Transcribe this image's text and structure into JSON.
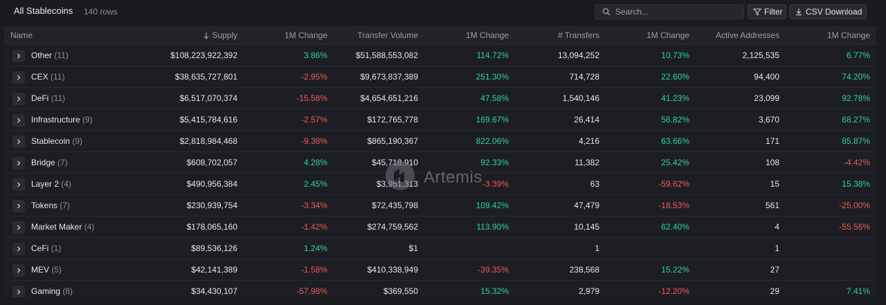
{
  "header": {
    "title": "All Stablecoins",
    "rows_label": "140 rows",
    "search_placeholder": "Search...",
    "filter_label": "Filter",
    "csv_label": "CSV Download"
  },
  "columns": {
    "name": "Name",
    "supply": "Supply",
    "supply_change": "1M Change",
    "transfer_volume": "Transfer Volume",
    "volume_change": "1M Change",
    "transfers": "# Transfers",
    "transfers_change": "1M Change",
    "active_addresses": "Active Addresses",
    "addresses_change": "1M Change"
  },
  "sort": {
    "column": "supply",
    "direction": "desc"
  },
  "rows": [
    {
      "name": "Other",
      "count": "(11)",
      "supply": "$108,223,922,392",
      "supply_change": "3.86%",
      "sc_dir": "pos",
      "volume": "$51,588,553,082",
      "volume_change": "114.72%",
      "vc_dir": "pos",
      "transfers": "13,094,252",
      "transfers_change": "10.73%",
      "tc_dir": "pos",
      "addresses": "2,125,535",
      "addresses_change": "6.77%",
      "ac_dir": "pos"
    },
    {
      "name": "CEX",
      "count": "(11)",
      "supply": "$38,635,727,801",
      "supply_change": "-2.95%",
      "sc_dir": "neg",
      "volume": "$9,673,837,389",
      "volume_change": "251.30%",
      "vc_dir": "pos",
      "transfers": "714,728",
      "transfers_change": "22.60%",
      "tc_dir": "pos",
      "addresses": "94,400",
      "addresses_change": "74.20%",
      "ac_dir": "pos"
    },
    {
      "name": "DeFi",
      "count": "(11)",
      "supply": "$6,517,070,374",
      "supply_change": "-15.58%",
      "sc_dir": "neg",
      "volume": "$4,654,651,216",
      "volume_change": "47.58%",
      "vc_dir": "pos",
      "transfers": "1,540,146",
      "transfers_change": "41.23%",
      "tc_dir": "pos",
      "addresses": "23,099",
      "addresses_change": "92.78%",
      "ac_dir": "pos"
    },
    {
      "name": "Infrastructure",
      "count": "(9)",
      "supply": "$5,415,784,616",
      "supply_change": "-2.57%",
      "sc_dir": "neg",
      "volume": "$172,765,778",
      "volume_change": "169.67%",
      "vc_dir": "pos",
      "transfers": "26,414",
      "transfers_change": "56.82%",
      "tc_dir": "pos",
      "addresses": "3,670",
      "addresses_change": "68.27%",
      "ac_dir": "pos"
    },
    {
      "name": "Stablecoin",
      "count": "(9)",
      "supply": "$2,818,984,468",
      "supply_change": "-9.38%",
      "sc_dir": "neg",
      "volume": "$865,190,367",
      "volume_change": "822.06%",
      "vc_dir": "pos",
      "transfers": "4,216",
      "transfers_change": "63.66%",
      "tc_dir": "pos",
      "addresses": "171",
      "addresses_change": "85.87%",
      "ac_dir": "pos"
    },
    {
      "name": "Bridge",
      "count": "(7)",
      "supply": "$608,702,057",
      "supply_change": "4.28%",
      "sc_dir": "pos",
      "volume": "$45,718,910",
      "volume_change": "92.33%",
      "vc_dir": "pos",
      "transfers": "11,382",
      "transfers_change": "25.42%",
      "tc_dir": "pos",
      "addresses": "108",
      "addresses_change": "-4.42%",
      "ac_dir": "neg"
    },
    {
      "name": "Layer 2",
      "count": "(4)",
      "supply": "$490,956,384",
      "supply_change": "2.45%",
      "sc_dir": "pos",
      "volume": "$3,951,313",
      "volume_change": "-3.39%",
      "vc_dir": "neg",
      "transfers": "63",
      "transfers_change": "-59.62%",
      "tc_dir": "neg",
      "addresses": "15",
      "addresses_change": "15.38%",
      "ac_dir": "pos"
    },
    {
      "name": "Tokens",
      "count": "(7)",
      "supply": "$230,939,754",
      "supply_change": "-3.34%",
      "sc_dir": "neg",
      "volume": "$72,435,798",
      "volume_change": "109.42%",
      "vc_dir": "pos",
      "transfers": "47,479",
      "transfers_change": "-18.53%",
      "tc_dir": "neg",
      "addresses": "561",
      "addresses_change": "-25.00%",
      "ac_dir": "neg"
    },
    {
      "name": "Market Maker",
      "count": "(4)",
      "supply": "$178,065,160",
      "supply_change": "-1.42%",
      "sc_dir": "neg",
      "volume": "$274,759,562",
      "volume_change": "113.90%",
      "vc_dir": "pos",
      "transfers": "10,145",
      "transfers_change": "62.40%",
      "tc_dir": "pos",
      "addresses": "4",
      "addresses_change": "-55.56%",
      "ac_dir": "neg"
    },
    {
      "name": "CeFi",
      "count": "(1)",
      "supply": "$89,536,126",
      "supply_change": "1.24%",
      "sc_dir": "pos",
      "volume": "$1",
      "volume_change": "",
      "vc_dir": "pos",
      "transfers": "1",
      "transfers_change": "",
      "tc_dir": "pos",
      "addresses": "1",
      "addresses_change": "",
      "ac_dir": "pos"
    },
    {
      "name": "MEV",
      "count": "(5)",
      "supply": "$42,141,389",
      "supply_change": "-1.58%",
      "sc_dir": "neg",
      "volume": "$410,338,949",
      "volume_change": "-39.35%",
      "vc_dir": "neg",
      "transfers": "238,568",
      "transfers_change": "15.22%",
      "tc_dir": "pos",
      "addresses": "27",
      "addresses_change": "",
      "ac_dir": "pos"
    },
    {
      "name": "Gaming",
      "count": "(8)",
      "supply": "$34,430,107",
      "supply_change": "-57.98%",
      "sc_dir": "neg",
      "volume": "$369,550",
      "volume_change": "15.32%",
      "vc_dir": "pos",
      "transfers": "2,979",
      "transfers_change": "-12.20%",
      "tc_dir": "neg",
      "addresses": "29",
      "addresses_change": "7.41%",
      "ac_dir": "pos"
    }
  ],
  "watermark": {
    "text": "Artemis"
  },
  "colors": {
    "positive": "#2fd39a",
    "negative": "#ef5a5a",
    "background": "#1a1b1f"
  }
}
